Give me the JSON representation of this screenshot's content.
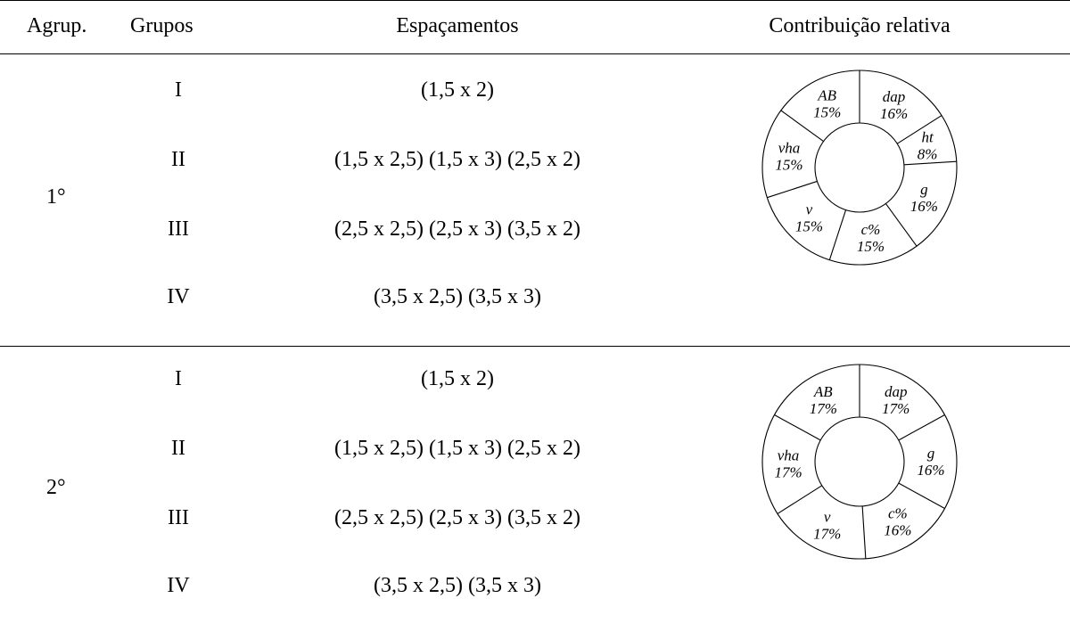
{
  "headers": {
    "agrup": "Agrup.",
    "grupos": "Grupos",
    "espacamentos": "Espaçamentos",
    "contribuicao": "Contribuição relativa"
  },
  "blocks": [
    {
      "label": "1°",
      "rows": [
        {
          "grupo": "I",
          "espacamentos": "(1,5 x 2)"
        },
        {
          "grupo": "II",
          "espacamentos": "(1,5 x 2,5) (1,5 x 3) (2,5 x 2)"
        },
        {
          "grupo": "III",
          "espacamentos": "(2,5 x 2,5) (2,5 x 3) (3,5 x 2)"
        },
        {
          "grupo": "IV",
          "espacamentos": "(3,5 x 2,5) (3,5 x 3)"
        }
      ]
    },
    {
      "label": "2°",
      "rows": [
        {
          "grupo": "I",
          "espacamentos": "(1,5 x 2)"
        },
        {
          "grupo": "II",
          "espacamentos": "(1,5 x 2,5) (1,5 x 3) (2,5 x 2)"
        },
        {
          "grupo": "III",
          "espacamentos": "(2,5 x 2,5) (2,5 x 3) (3,5 x 2)"
        },
        {
          "grupo": "IV",
          "espacamentos": "(3,5 x 2,5) (3,5 x 3)"
        }
      ]
    }
  ],
  "chart_data": [
    {
      "type": "pie",
      "categories": [
        "dap",
        "ht",
        "g",
        "c%",
        "v",
        "vha",
        "AB"
      ],
      "values": [
        16,
        8,
        16,
        15,
        15,
        15,
        15
      ],
      "labels": [
        "16%",
        "8%",
        "16%",
        "15%",
        "15%",
        "15%",
        "15%"
      ]
    },
    {
      "type": "pie",
      "categories": [
        "dap",
        "g",
        "c%",
        "v",
        "vha",
        "AB"
      ],
      "values": [
        17,
        16,
        16,
        17,
        17,
        17
      ],
      "labels": [
        "17%",
        "16%",
        "16%",
        "17%",
        "17%",
        "17%"
      ]
    }
  ]
}
